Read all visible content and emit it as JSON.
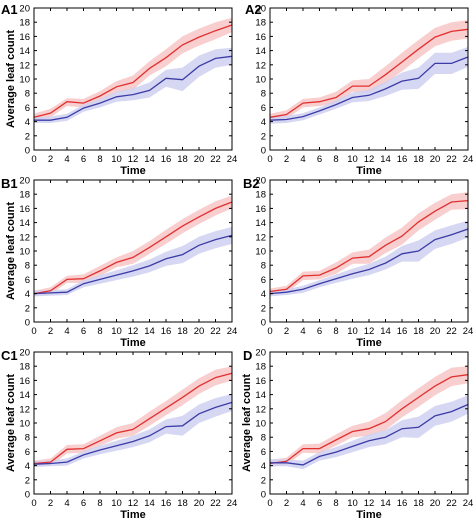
{
  "chart_data": [
    {
      "panel_label": "A1",
      "type": "line",
      "xlabel": "Time",
      "ylabel": "Average leaf count",
      "xlim": [
        0,
        24
      ],
      "ylim": [
        0,
        20
      ],
      "xticks": [
        0,
        2,
        4,
        6,
        8,
        10,
        12,
        14,
        16,
        18,
        20,
        22,
        24
      ],
      "yticks": [
        0,
        2,
        4,
        6,
        8,
        10,
        12,
        14,
        16,
        18,
        20
      ],
      "x": [
        0,
        2,
        4,
        6,
        8,
        10,
        12,
        14,
        16,
        18,
        20,
        22,
        24
      ],
      "series": [
        {
          "color": "#e23030",
          "band_color": "#f7c6c6",
          "values": [
            4.6,
            5.2,
            6.8,
            6.6,
            7.6,
            8.9,
            9.5,
            11.5,
            13.0,
            14.8,
            15.9,
            16.8,
            17.6
          ],
          "upper": [
            5.1,
            5.8,
            7.3,
            7.2,
            8.3,
            9.7,
            10.5,
            12.5,
            14.2,
            16.0,
            17.1,
            18.0,
            18.6
          ],
          "lower": [
            4.1,
            4.6,
            6.2,
            6.0,
            6.9,
            8.1,
            8.5,
            10.5,
            11.8,
            13.6,
            14.7,
            15.6,
            16.6
          ]
        },
        {
          "color": "#3c3ca8",
          "band_color": "#cfd0f0",
          "values": [
            4.2,
            4.2,
            4.6,
            5.9,
            6.6,
            7.5,
            7.8,
            8.4,
            10.1,
            9.9,
            11.8,
            12.9,
            13.2
          ],
          "upper": [
            4.6,
            4.7,
            5.1,
            6.4,
            7.2,
            8.2,
            8.7,
            9.5,
            11.3,
            11.6,
            13.3,
            14.2,
            14.4
          ],
          "lower": [
            3.8,
            3.8,
            4.1,
            5.4,
            6.0,
            6.8,
            7.0,
            7.4,
            8.9,
            8.3,
            10.3,
            11.6,
            12.0
          ]
        }
      ]
    },
    {
      "panel_label": "A2",
      "type": "line",
      "xlabel": "Time",
      "ylabel": "",
      "xlim": [
        0,
        24
      ],
      "ylim": [
        0,
        20
      ],
      "xticks": [
        0,
        2,
        4,
        6,
        8,
        10,
        12,
        14,
        16,
        18,
        20,
        22,
        24
      ],
      "yticks": [
        0,
        2,
        4,
        6,
        8,
        10,
        12,
        14,
        16,
        18,
        20
      ],
      "x": [
        0,
        2,
        4,
        6,
        8,
        10,
        12,
        14,
        16,
        18,
        20,
        22,
        24
      ],
      "series": [
        {
          "color": "#e23030",
          "band_color": "#f7c6c6",
          "values": [
            4.6,
            5.0,
            6.6,
            6.8,
            7.4,
            9.0,
            9.0,
            10.6,
            12.4,
            14.2,
            15.9,
            16.7,
            17.0
          ],
          "upper": [
            5.1,
            5.6,
            7.2,
            7.4,
            8.2,
            9.8,
            10.0,
            11.8,
            13.7,
            15.5,
            17.2,
            18.0,
            18.3
          ],
          "lower": [
            4.1,
            4.4,
            6.0,
            6.2,
            6.6,
            8.2,
            8.0,
            9.4,
            11.1,
            12.9,
            14.6,
            15.4,
            15.7
          ]
        },
        {
          "color": "#3c3ca8",
          "band_color": "#cfd0f0",
          "values": [
            4.2,
            4.3,
            4.7,
            5.5,
            6.4,
            7.4,
            7.7,
            8.6,
            9.7,
            10.1,
            12.2,
            12.2,
            13.1
          ],
          "upper": [
            4.7,
            4.8,
            5.2,
            6.0,
            7.0,
            8.1,
            8.5,
            9.6,
            10.9,
            11.6,
            13.7,
            13.7,
            14.5
          ],
          "lower": [
            3.7,
            3.8,
            4.2,
            5.0,
            5.8,
            6.7,
            6.9,
            7.6,
            8.5,
            8.6,
            10.7,
            10.7,
            11.7
          ]
        }
      ]
    },
    {
      "panel_label": "B1",
      "type": "line",
      "xlabel": "Time",
      "ylabel": "Average leaf count",
      "xlim": [
        0,
        24
      ],
      "ylim": [
        0,
        20
      ],
      "xticks": [
        0,
        2,
        4,
        6,
        8,
        10,
        12,
        14,
        16,
        18,
        20,
        22,
        24
      ],
      "yticks": [
        0,
        2,
        4,
        6,
        8,
        10,
        12,
        14,
        16,
        18,
        20
      ],
      "x": [
        0,
        2,
        4,
        6,
        8,
        10,
        12,
        14,
        16,
        18,
        20,
        22,
        24
      ],
      "series": [
        {
          "color": "#e23030",
          "band_color": "#f7c6c6",
          "values": [
            4.0,
            4.4,
            6.0,
            6.1,
            7.2,
            8.4,
            9.1,
            10.5,
            12.0,
            13.5,
            14.8,
            16.0,
            16.9
          ],
          "upper": [
            4.4,
            4.9,
            6.5,
            6.7,
            7.9,
            9.1,
            10.0,
            11.4,
            13.0,
            14.5,
            15.8,
            17.0,
            17.8
          ],
          "lower": [
            3.6,
            3.9,
            5.5,
            5.5,
            6.5,
            7.7,
            8.2,
            9.6,
            11.0,
            12.5,
            13.8,
            15.0,
            16.0
          ]
        },
        {
          "color": "#3c3ca8",
          "band_color": "#cfd0f0",
          "values": [
            4.0,
            4.1,
            4.2,
            5.4,
            6.0,
            6.6,
            7.2,
            7.9,
            8.9,
            9.5,
            10.8,
            11.6,
            12.2
          ],
          "upper": [
            4.4,
            4.5,
            4.6,
            5.9,
            6.6,
            7.3,
            8.0,
            8.8,
            9.9,
            10.7,
            12.0,
            12.8,
            13.4
          ],
          "lower": [
            3.6,
            3.7,
            3.8,
            4.9,
            5.4,
            5.9,
            6.4,
            7.0,
            7.9,
            8.3,
            9.6,
            10.4,
            11.0
          ]
        }
      ]
    },
    {
      "panel_label": "B2",
      "type": "line",
      "xlabel": "Time",
      "ylabel": "",
      "xlim": [
        0,
        24
      ],
      "ylim": [
        0,
        20
      ],
      "xticks": [
        0,
        2,
        4,
        6,
        8,
        10,
        12,
        14,
        16,
        18,
        20,
        22,
        24
      ],
      "yticks": [
        0,
        2,
        4,
        6,
        8,
        10,
        12,
        14,
        16,
        18,
        20
      ],
      "x": [
        0,
        2,
        4,
        6,
        8,
        10,
        12,
        14,
        16,
        18,
        20,
        22,
        24
      ],
      "series": [
        {
          "color": "#e23030",
          "band_color": "#f7c6c6",
          "values": [
            4.3,
            4.6,
            6.5,
            6.6,
            7.6,
            9.0,
            9.2,
            10.8,
            12.1,
            14.1,
            15.6,
            16.9,
            17.1
          ],
          "upper": [
            4.7,
            5.1,
            7.1,
            7.2,
            8.4,
            9.8,
            10.2,
            11.9,
            13.3,
            15.3,
            16.8,
            18.0,
            18.3
          ],
          "lower": [
            3.9,
            4.1,
            5.9,
            6.0,
            6.8,
            8.2,
            8.2,
            9.7,
            10.9,
            12.9,
            14.4,
            15.8,
            15.9
          ]
        },
        {
          "color": "#3c3ca8",
          "band_color": "#cfd0f0",
          "values": [
            4.0,
            4.2,
            4.6,
            5.4,
            6.1,
            6.8,
            7.4,
            8.3,
            9.6,
            10.0,
            11.6,
            12.3,
            13.1
          ],
          "upper": [
            4.4,
            4.6,
            5.1,
            5.9,
            6.7,
            7.5,
            8.2,
            9.2,
            10.7,
            11.5,
            12.9,
            13.6,
            14.3
          ],
          "lower": [
            3.6,
            3.8,
            4.1,
            4.9,
            5.5,
            6.1,
            6.6,
            7.4,
            8.5,
            8.5,
            10.3,
            11.0,
            11.9
          ]
        }
      ]
    },
    {
      "panel_label": "C1",
      "type": "line",
      "xlabel": "Time",
      "ylabel": "Average leaf count",
      "xlim": [
        0,
        24
      ],
      "ylim": [
        0,
        20
      ],
      "xticks": [
        0,
        2,
        4,
        6,
        8,
        10,
        12,
        14,
        16,
        18,
        20,
        22,
        24
      ],
      "yticks": [
        0,
        2,
        4,
        6,
        8,
        10,
        12,
        14,
        16,
        18,
        20
      ],
      "x": [
        0,
        2,
        4,
        6,
        8,
        10,
        12,
        14,
        16,
        18,
        20,
        22,
        24
      ],
      "series": [
        {
          "color": "#e23030",
          "band_color": "#f7c6c6",
          "values": [
            4.3,
            4.5,
            6.3,
            6.4,
            7.5,
            8.6,
            9.1,
            10.6,
            12.1,
            13.6,
            15.2,
            16.4,
            17.0
          ],
          "upper": [
            4.7,
            5.0,
            6.9,
            7.0,
            8.2,
            9.4,
            10.0,
            11.6,
            13.1,
            14.7,
            16.3,
            17.5,
            18.0
          ],
          "lower": [
            3.9,
            4.0,
            5.7,
            5.8,
            6.8,
            7.8,
            8.2,
            9.6,
            11.1,
            12.5,
            14.1,
            15.3,
            16.0
          ]
        },
        {
          "color": "#3c3ca8",
          "band_color": "#cfd0f0",
          "values": [
            4.2,
            4.3,
            4.5,
            5.5,
            6.2,
            6.8,
            7.4,
            8.2,
            9.5,
            9.6,
            11.3,
            12.2,
            12.9
          ],
          "upper": [
            4.6,
            4.7,
            5.0,
            6.0,
            6.8,
            7.5,
            8.2,
            9.1,
            10.5,
            11.0,
            12.6,
            13.5,
            14.1
          ],
          "lower": [
            3.8,
            3.9,
            4.0,
            5.0,
            5.6,
            6.1,
            6.6,
            7.3,
            8.5,
            8.2,
            10.0,
            10.9,
            11.7
          ]
        }
      ]
    },
    {
      "panel_label": "D",
      "type": "line",
      "xlabel": "Time",
      "ylabel": "Average leaf count",
      "xlim": [
        0,
        24
      ],
      "ylim": [
        0,
        20
      ],
      "xticks": [
        0,
        2,
        4,
        6,
        8,
        10,
        12,
        14,
        16,
        18,
        20,
        22,
        24
      ],
      "yticks": [
        0,
        2,
        4,
        6,
        8,
        10,
        12,
        14,
        16,
        18,
        20
      ],
      "x": [
        0,
        2,
        4,
        6,
        8,
        10,
        12,
        14,
        16,
        18,
        20,
        22,
        24
      ],
      "series": [
        {
          "color": "#e23030",
          "band_color": "#f7c6c6",
          "values": [
            4.3,
            4.6,
            6.4,
            6.4,
            7.6,
            8.8,
            9.2,
            10.2,
            12.0,
            13.6,
            15.2,
            16.5,
            16.8
          ],
          "upper": [
            4.8,
            5.1,
            7.0,
            7.1,
            8.4,
            9.6,
            10.2,
            11.4,
            13.2,
            14.9,
            16.5,
            17.8,
            18.0
          ],
          "lower": [
            3.8,
            4.1,
            5.8,
            5.7,
            6.8,
            8.0,
            8.2,
            9.0,
            10.8,
            12.3,
            13.9,
            15.2,
            15.6
          ]
        },
        {
          "color": "#3c3ca8",
          "band_color": "#cfd0f0",
          "values": [
            4.4,
            4.4,
            4.1,
            5.3,
            5.9,
            6.7,
            7.5,
            8.0,
            9.2,
            9.4,
            11.0,
            11.6,
            12.6
          ],
          "upper": [
            4.9,
            4.9,
            4.7,
            5.9,
            6.6,
            7.5,
            8.4,
            9.0,
            10.4,
            10.9,
            12.4,
            13.0,
            13.9
          ],
          "lower": [
            3.9,
            3.9,
            3.5,
            4.7,
            5.2,
            5.9,
            6.6,
            7.0,
            8.0,
            7.9,
            9.6,
            10.2,
            11.3
          ]
        }
      ]
    }
  ]
}
